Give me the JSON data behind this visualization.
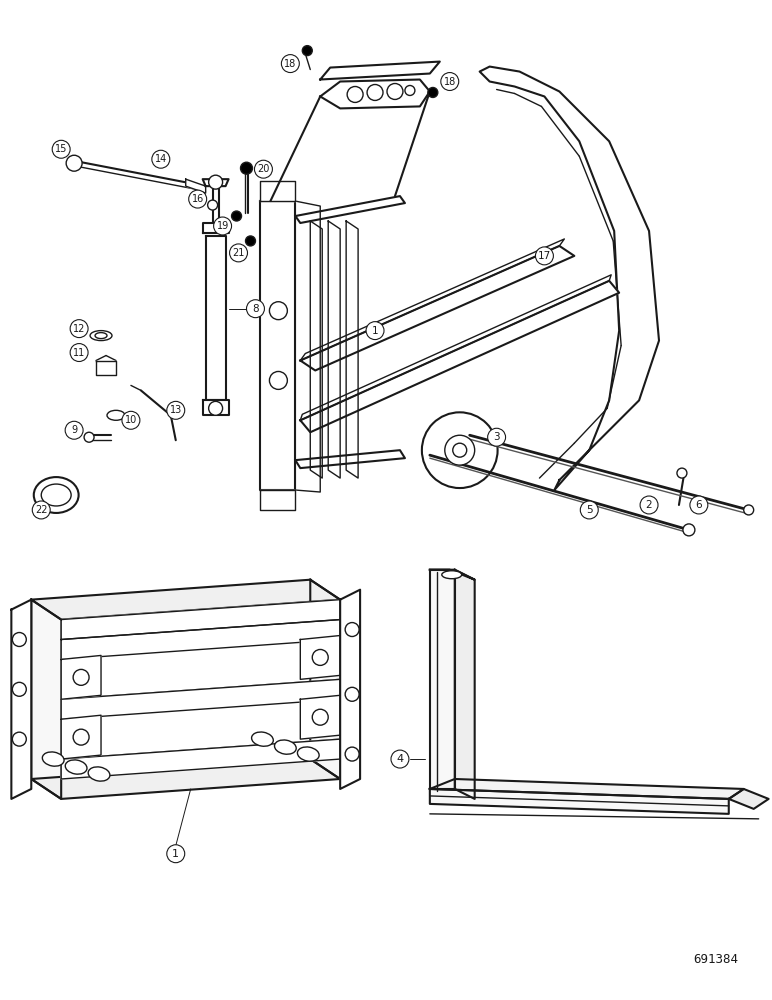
{
  "fig_width": 7.72,
  "fig_height": 10.0,
  "dpi": 100,
  "bg_color": "#ffffff",
  "lc": "#1a1a1a",
  "watermark": "691384"
}
